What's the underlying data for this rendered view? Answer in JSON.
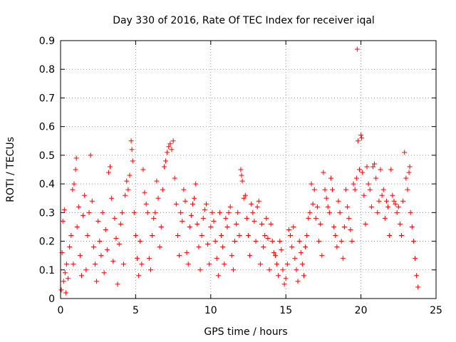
{
  "chart_data": {
    "type": "scatter",
    "title": "Day 330 of 2016, Rate Of TEC Index for receiver iqal",
    "xlabel": "GPS time / hours",
    "ylabel": "ROTI / TECUs",
    "xlim": [
      0,
      25
    ],
    "ylim": [
      0,
      0.9
    ],
    "x_ticks": [
      0,
      5,
      10,
      15,
      20,
      25
    ],
    "y_ticks": [
      0,
      0.1,
      0.2,
      0.3,
      0.4,
      0.5,
      0.6,
      0.7,
      0.8,
      0.9
    ],
    "x_tick_labels": [
      "0",
      "5",
      "10",
      "15",
      "20",
      "25"
    ],
    "y_tick_labels": [
      "0",
      "0.1",
      "0.2",
      "0.3",
      "0.4",
      "0.5",
      "0.6",
      "0.7",
      "0.8",
      "0.9"
    ],
    "grid": true,
    "marker": "+",
    "colors": {
      "points": "#ff0000",
      "grid": "#a0a0a0",
      "axes": "#000000"
    },
    "series": [
      {
        "points": [
          [
            0.05,
            0.03
          ],
          [
            0.1,
            0.16
          ],
          [
            0.15,
            0.27
          ],
          [
            0.2,
            0.06
          ],
          [
            0.25,
            0.31
          ],
          [
            0.3,
            0.09
          ],
          [
            0.35,
            0.02
          ],
          [
            0.4,
            0.12
          ],
          [
            0.5,
            0.07
          ],
          [
            0.6,
            0.18
          ],
          [
            0.7,
            0.22
          ],
          [
            0.8,
            0.38
          ],
          [
            0.85,
            0.12
          ],
          [
            0.9,
            0.4
          ],
          [
            1.0,
            0.45
          ],
          [
            1.05,
            0.49
          ],
          [
            1.1,
            0.25
          ],
          [
            1.2,
            0.32
          ],
          [
            1.3,
            0.15
          ],
          [
            1.4,
            0.08
          ],
          [
            1.5,
            0.29
          ],
          [
            1.6,
            0.36
          ],
          [
            1.7,
            0.1
          ],
          [
            1.8,
            0.22
          ],
          [
            1.9,
            0.3
          ],
          [
            2.0,
            0.5
          ],
          [
            2.1,
            0.34
          ],
          [
            2.2,
            0.18
          ],
          [
            2.3,
            0.12
          ],
          [
            2.4,
            0.06
          ],
          [
            2.5,
            0.27
          ],
          [
            2.6,
            0.2
          ],
          [
            2.7,
            0.15
          ],
          [
            2.8,
            0.3
          ],
          [
            2.9,
            0.09
          ],
          [
            3.0,
            0.24
          ],
          [
            3.1,
            0.17
          ],
          [
            3.2,
            0.44
          ],
          [
            3.3,
            0.46
          ],
          [
            3.4,
            0.35
          ],
          [
            3.5,
            0.13
          ],
          [
            3.6,
            0.28
          ],
          [
            3.7,
            0.21
          ],
          [
            3.8,
            0.05
          ],
          [
            3.9,
            0.19
          ],
          [
            4.0,
            0.26
          ],
          [
            4.1,
            0.3
          ],
          [
            4.2,
            0.12
          ],
          [
            4.3,
            0.36
          ],
          [
            4.4,
            0.41
          ],
          [
            4.5,
            0.38
          ],
          [
            4.6,
            0.43
          ],
          [
            4.7,
            0.55
          ],
          [
            4.75,
            0.52
          ],
          [
            4.8,
            0.48
          ],
          [
            4.9,
            0.3
          ],
          [
            5.0,
            0.22
          ],
          [
            5.1,
            0.14
          ],
          [
            5.2,
            0.08
          ],
          [
            5.3,
            0.2
          ],
          [
            5.4,
            0.12
          ],
          [
            5.5,
            0.45
          ],
          [
            5.6,
            0.37
          ],
          [
            5.7,
            0.33
          ],
          [
            5.8,
            0.3
          ],
          [
            5.9,
            0.14
          ],
          [
            6.0,
            0.1
          ],
          [
            6.1,
            0.22
          ],
          [
            6.2,
            0.28
          ],
          [
            6.3,
            0.3
          ],
          [
            6.4,
            0.41
          ],
          [
            6.5,
            0.35
          ],
          [
            6.6,
            0.18
          ],
          [
            6.7,
            0.25
          ],
          [
            6.8,
            0.38
          ],
          [
            6.9,
            0.46
          ],
          [
            7.0,
            0.48
          ],
          [
            7.1,
            0.51
          ],
          [
            7.2,
            0.53
          ],
          [
            7.3,
            0.54
          ],
          [
            7.4,
            0.52
          ],
          [
            7.5,
            0.55
          ],
          [
            7.6,
            0.42
          ],
          [
            7.7,
            0.33
          ],
          [
            7.8,
            0.22
          ],
          [
            7.9,
            0.15
          ],
          [
            8.0,
            0.3
          ],
          [
            8.1,
            0.27
          ],
          [
            8.2,
            0.38
          ],
          [
            8.3,
            0.34
          ],
          [
            8.4,
            0.16
          ],
          [
            8.5,
            0.12
          ],
          [
            8.6,
            0.25
          ],
          [
            8.7,
            0.29
          ],
          [
            8.8,
            0.33
          ],
          [
            8.9,
            0.35
          ],
          [
            9.0,
            0.4
          ],
          [
            9.1,
            0.26
          ],
          [
            9.2,
            0.18
          ],
          [
            9.3,
            0.1
          ],
          [
            9.4,
            0.22
          ],
          [
            9.5,
            0.28
          ],
          [
            9.6,
            0.31
          ],
          [
            9.7,
            0.33
          ],
          [
            9.8,
            0.19
          ],
          [
            9.9,
            0.12
          ],
          [
            10.0,
            0.25
          ],
          [
            10.1,
            0.3
          ],
          [
            10.2,
            0.27
          ],
          [
            10.3,
            0.2
          ],
          [
            10.4,
            0.14
          ],
          [
            10.5,
            0.08
          ],
          [
            10.6,
            0.3
          ],
          [
            10.7,
            0.22
          ],
          [
            10.8,
            0.18
          ],
          [
            10.9,
            0.12
          ],
          [
            11.0,
            0.28
          ],
          [
            11.1,
            0.25
          ],
          [
            11.2,
            0.3
          ],
          [
            11.3,
            0.32
          ],
          [
            11.4,
            0.15
          ],
          [
            11.5,
            0.1
          ],
          [
            11.6,
            0.2
          ],
          [
            11.7,
            0.26
          ],
          [
            11.8,
            0.3
          ],
          [
            11.9,
            0.22
          ],
          [
            12.0,
            0.45
          ],
          [
            12.05,
            0.43
          ],
          [
            12.1,
            0.41
          ],
          [
            12.2,
            0.35
          ],
          [
            12.3,
            0.36
          ],
          [
            12.4,
            0.28
          ],
          [
            12.5,
            0.22
          ],
          [
            12.6,
            0.15
          ],
          [
            12.7,
            0.33
          ],
          [
            12.8,
            0.3
          ],
          [
            12.9,
            0.27
          ],
          [
            13.0,
            0.2
          ],
          [
            13.1,
            0.32
          ],
          [
            13.2,
            0.34
          ],
          [
            13.3,
            0.12
          ],
          [
            13.4,
            0.26
          ],
          [
            13.5,
            0.18
          ],
          [
            13.6,
            0.22
          ],
          [
            13.7,
            0.28
          ],
          [
            13.8,
            0.21
          ],
          [
            13.9,
            0.1
          ],
          [
            14.0,
            0.26
          ],
          [
            14.1,
            0.2
          ],
          [
            14.2,
            0.16
          ],
          [
            14.3,
            0.15
          ],
          [
            14.4,
            0.12
          ],
          [
            14.5,
            0.08
          ],
          [
            14.6,
            0.2
          ],
          [
            14.7,
            0.17
          ],
          [
            14.8,
            0.1
          ],
          [
            14.9,
            0.05
          ],
          [
            15.0,
            0.07
          ],
          [
            15.1,
            0.12
          ],
          [
            15.2,
            0.24
          ],
          [
            15.3,
            0.22
          ],
          [
            15.4,
            0.18
          ],
          [
            15.5,
            0.25
          ],
          [
            15.6,
            0.14
          ],
          [
            15.7,
            0.1
          ],
          [
            15.8,
            0.06
          ],
          [
            15.9,
            0.2
          ],
          [
            16.0,
            0.16
          ],
          [
            16.1,
            0.12
          ],
          [
            16.2,
            0.08
          ],
          [
            16.3,
            0.18
          ],
          [
            16.4,
            0.22
          ],
          [
            16.5,
            0.28
          ],
          [
            16.6,
            0.3
          ],
          [
            16.7,
            0.4
          ],
          [
            16.8,
            0.33
          ],
          [
            16.9,
            0.38
          ],
          [
            17.0,
            0.28
          ],
          [
            17.1,
            0.32
          ],
          [
            17.2,
            0.2
          ],
          [
            17.3,
            0.26
          ],
          [
            17.4,
            0.15
          ],
          [
            17.5,
            0.44
          ],
          [
            17.6,
            0.38
          ],
          [
            17.7,
            0.35
          ],
          [
            17.8,
            0.32
          ],
          [
            17.9,
            0.3
          ],
          [
            18.0,
            0.42
          ],
          [
            18.1,
            0.38
          ],
          [
            18.2,
            0.25
          ],
          [
            18.3,
            0.22
          ],
          [
            18.4,
            0.18
          ],
          [
            18.5,
            0.34
          ],
          [
            18.6,
            0.3
          ],
          [
            18.7,
            0.2
          ],
          [
            18.8,
            0.14
          ],
          [
            18.9,
            0.25
          ],
          [
            19.0,
            0.38
          ],
          [
            19.1,
            0.32
          ],
          [
            19.2,
            0.28
          ],
          [
            19.3,
            0.24
          ],
          [
            19.4,
            0.2
          ],
          [
            19.5,
            0.4
          ],
          [
            19.6,
            0.38
          ],
          [
            19.7,
            0.42
          ],
          [
            19.75,
            0.87
          ],
          [
            19.8,
            0.55
          ],
          [
            19.9,
            0.45
          ],
          [
            20.0,
            0.57
          ],
          [
            20.05,
            0.56
          ],
          [
            20.1,
            0.44
          ],
          [
            20.2,
            0.36
          ],
          [
            20.3,
            0.26
          ],
          [
            20.4,
            0.46
          ],
          [
            20.5,
            0.4
          ],
          [
            20.6,
            0.38
          ],
          [
            20.7,
            0.32
          ],
          [
            20.8,
            0.46
          ],
          [
            20.9,
            0.47
          ],
          [
            21.0,
            0.42
          ],
          [
            21.1,
            0.3
          ],
          [
            21.2,
            0.34
          ],
          [
            21.3,
            0.45
          ],
          [
            21.4,
            0.36
          ],
          [
            21.5,
            0.38
          ],
          [
            21.6,
            0.28
          ],
          [
            21.7,
            0.34
          ],
          [
            21.8,
            0.32
          ],
          [
            21.9,
            0.22
          ],
          [
            22.0,
            0.45
          ],
          [
            22.1,
            0.36
          ],
          [
            22.2,
            0.34
          ],
          [
            22.3,
            0.33
          ],
          [
            22.4,
            0.3
          ],
          [
            22.5,
            0.32
          ],
          [
            22.6,
            0.26
          ],
          [
            22.7,
            0.22
          ],
          [
            22.8,
            0.34
          ],
          [
            22.9,
            0.51
          ],
          [
            23.0,
            0.42
          ],
          [
            23.1,
            0.38
          ],
          [
            23.2,
            0.44
          ],
          [
            23.25,
            0.46
          ],
          [
            23.3,
            0.3
          ],
          [
            23.4,
            0.25
          ],
          [
            23.5,
            0.2
          ],
          [
            23.6,
            0.14
          ],
          [
            23.7,
            0.08
          ],
          [
            23.8,
            0.04
          ]
        ]
      }
    ]
  }
}
